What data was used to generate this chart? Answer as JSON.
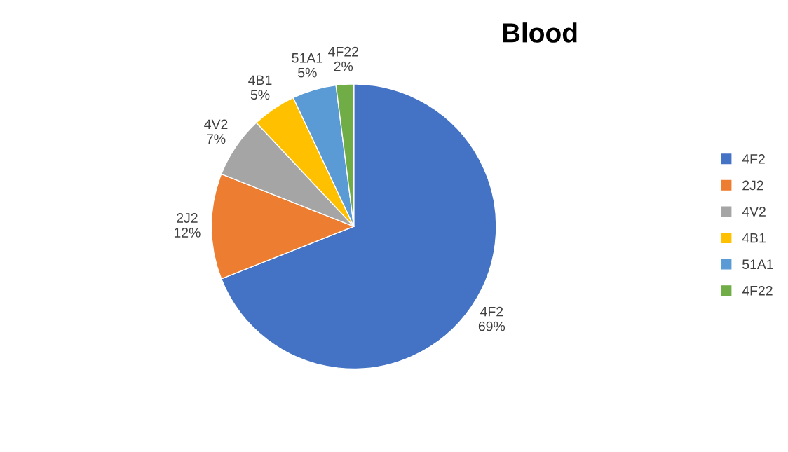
{
  "chart_data": {
    "type": "pie",
    "title": "Blood",
    "categories": [
      "4F2",
      "2J2",
      "4V2",
      "4B1",
      "51A1",
      "4F22"
    ],
    "values": [
      69,
      12,
      7,
      5,
      5,
      2
    ],
    "value_labels": [
      "69%",
      "12%",
      "7%",
      "5%",
      "5%",
      "2%"
    ],
    "colors": [
      "#4472c4",
      "#ed7d31",
      "#a5a5a5",
      "#ffc000",
      "#5b9bd5",
      "#70ad47"
    ],
    "legend": "right"
  }
}
